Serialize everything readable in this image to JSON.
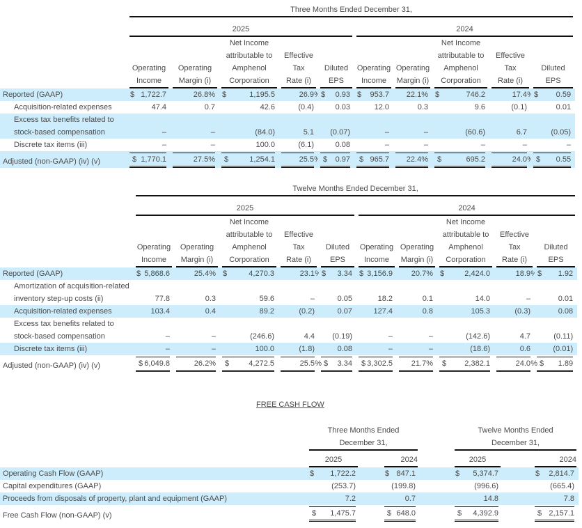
{
  "three_months": {
    "period": "Three Months Ended December 31,",
    "years": [
      "2025",
      "2024"
    ],
    "columns": [
      "Operating\nIncome",
      "Operating\nMargin (i)",
      "Net Income\nattributable to\nAmphenol\nCorporation",
      "Effective\nTax\nRate (i)",
      "Diluted\nEPS",
      "Operating\nIncome",
      "Operating\nMargin (i)",
      "Net Income\nattributable to\nAmphenol\nCorporation",
      "Effective\nTax\nRate (i)",
      "Diluted\nEPS"
    ],
    "rows": [
      {
        "label": "Reported (GAAP)",
        "cells": [
          [
            "$",
            "1,722.7",
            ""
          ],
          [
            "",
            "26.8%",
            ""
          ],
          [
            "$",
            "1,195.5",
            ""
          ],
          [
            "",
            "26.9",
            "%"
          ],
          [
            "$",
            "0.93",
            ""
          ],
          [
            "$",
            "953.7",
            ""
          ],
          [
            "",
            "22.1%",
            ""
          ],
          [
            "$",
            "746.2",
            ""
          ],
          [
            "",
            "17.4",
            "%"
          ],
          [
            "$",
            "0.59",
            ""
          ]
        ]
      },
      {
        "label": "Acquisition-related expenses",
        "cells": [
          "47.4",
          "0.7",
          "42.6",
          "(0.4)",
          "0.03",
          "12.0",
          "0.3",
          "9.6",
          "(0.1)",
          "0.01"
        ]
      },
      {
        "label": "Excess tax benefits related to stock-based compensation",
        "cells": [
          "–",
          "–",
          "(84.0)",
          "5.1",
          "(0.07)",
          "–",
          "–",
          "(60.6)",
          "6.7",
          "(0.05)"
        ]
      },
      {
        "label": "Discrete tax items (iii)",
        "cells": [
          "–",
          "–",
          "100.0",
          "(6.1)",
          "0.08",
          "–",
          "–",
          "–",
          "–",
          "–"
        ]
      },
      {
        "label": "Adjusted (non-GAAP) (iv) (v)",
        "cells": [
          [
            "$",
            "1,770.1",
            ""
          ],
          [
            "",
            "27.5%",
            ""
          ],
          [
            "$",
            "1,254.1",
            ""
          ],
          [
            "",
            "25.5",
            "%"
          ],
          [
            "$",
            "0.97",
            ""
          ],
          [
            "$",
            "965.7",
            ""
          ],
          [
            "",
            "22.4%",
            ""
          ],
          [
            "$",
            "695.2",
            ""
          ],
          [
            "",
            "24.0",
            "%"
          ],
          [
            "$",
            "0.55",
            ""
          ]
        ]
      }
    ]
  },
  "twelve_months": {
    "period": "Twelve Months Ended December 31,",
    "years": [
      "2025",
      "2024"
    ],
    "columns": [
      "Operating\nIncome",
      "Operating\nMargin (i)",
      "Net Income\nattributable to\nAmphenol\nCorporation",
      "Effective\nTax\nRate (i)",
      "Diluted\nEPS",
      "Operating\nIncome",
      "Operating\nMargin (i)",
      "Net Income\nattributable to\nAmphenol\nCorporation",
      "Effective\nTax\nRate (i)",
      "Diluted\nEPS"
    ],
    "rows": [
      {
        "label": "Reported (GAAP)",
        "cells": [
          [
            "$",
            "5,868.6",
            ""
          ],
          [
            "",
            "25.4%",
            ""
          ],
          [
            "$",
            "4,270.3",
            ""
          ],
          [
            "",
            "23.1",
            "%"
          ],
          [
            "$",
            "3.34",
            ""
          ],
          [
            "$",
            "3,156.9",
            ""
          ],
          [
            "",
            "20.7%",
            ""
          ],
          [
            "$",
            "2,424.0",
            ""
          ],
          [
            "",
            "18.9",
            "%"
          ],
          [
            "$",
            "1.92",
            ""
          ]
        ]
      },
      {
        "label": "Amortization of acquisition-related inventory step-up costs (ii)",
        "cells": [
          "77.8",
          "0.3",
          "59.6",
          "–",
          "0.05",
          "18.2",
          "0.1",
          "14.0",
          "–",
          "0.01"
        ]
      },
      {
        "label": "Acquisition-related expenses",
        "cells": [
          "103.4",
          "0.4",
          "89.2",
          "(0.2)",
          "0.07",
          "127.4",
          "0.8",
          "105.3",
          "(0.3)",
          "0.08"
        ]
      },
      {
        "label": "Excess tax benefits related to stock-based compensation",
        "cells": [
          "–",
          "–",
          "(246.6)",
          "4.4",
          "(0.19)",
          "–",
          "–",
          "(142.6)",
          "4.7",
          "(0.11)"
        ]
      },
      {
        "label": "Discrete tax items (iii)",
        "cells": [
          "–",
          "–",
          "100.0",
          "(1.8)",
          "0.08",
          "–",
          "–",
          "(18.6)",
          "0.6",
          "(0.01)"
        ]
      },
      {
        "label": "Adjusted (non-GAAP) (iv) (v)",
        "cells": [
          [
            "$",
            "6,049.8",
            ""
          ],
          [
            "",
            "26.2%",
            ""
          ],
          [
            "$",
            "4,272.5",
            ""
          ],
          [
            "",
            "25.5",
            "%"
          ],
          [
            "$",
            "3.34",
            ""
          ],
          [
            "$",
            "3,302.5",
            ""
          ],
          [
            "",
            "21.7%",
            ""
          ],
          [
            "$",
            "2,382.1",
            ""
          ],
          [
            "",
            "24.0",
            "%"
          ],
          [
            "$",
            "1.89",
            ""
          ]
        ]
      }
    ]
  },
  "free_cash_flow": {
    "title": "FREE CASH FLOW",
    "periods": [
      "Three Months Ended\nDecember 31,",
      "Twelve Months Ended\nDecember 31,"
    ],
    "years": [
      "2025",
      "2024",
      "2025",
      "2024"
    ],
    "rows": [
      {
        "label": "Operating Cash Flow (GAAP)",
        "cells": [
          [
            "$",
            "1,722.2",
            ""
          ],
          [
            "$",
            "847.1",
            ""
          ],
          [
            "$",
            "5,374.7",
            ""
          ],
          [
            "$",
            "2,814.7",
            ""
          ]
        ]
      },
      {
        "label": "Capital expenditures (GAAP)",
        "cells": [
          "(253.7)",
          "(199.8)",
          "(996.6)",
          "(665.4)"
        ]
      },
      {
        "label": "Proceeds from disposals of property, plant and equipment (GAAP)",
        "cells": [
          "7.2",
          "0.7",
          "14.8",
          "7.8"
        ]
      },
      {
        "label": "Free Cash Flow (non-GAAP) (v)",
        "cells": [
          [
            "$",
            "1,475.7",
            ""
          ],
          [
            "$",
            "648.0",
            ""
          ],
          [
            "$",
            "4,392.9",
            ""
          ],
          [
            "$",
            "2,157.1",
            ""
          ]
        ]
      }
    ]
  }
}
